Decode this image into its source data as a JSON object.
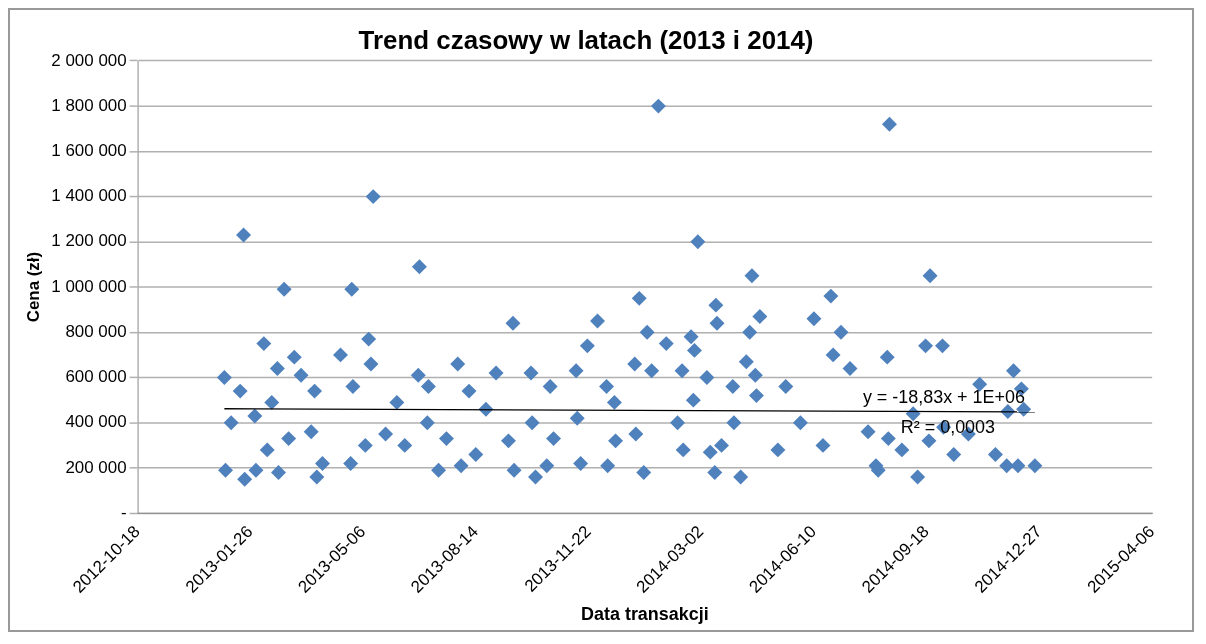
{
  "chart_data": {
    "type": "scatter",
    "title": "Trend czasowy w latach (2013 i 2014)",
    "xlabel": "Data transakcji",
    "ylabel": "Cena (zł)",
    "xlim": [
      "2012-10-18",
      "2015-04-06"
    ],
    "xticks": [
      "2012-10-18",
      "2013-01-26",
      "2013-05-06",
      "2013-08-14",
      "2013-11-22",
      "2014-03-02",
      "2014-06-10",
      "2014-09-18",
      "2014-12-27",
      "2015-04-06"
    ],
    "ylim": [
      0,
      2000000
    ],
    "yticks": [
      {
        "value": 0,
        "label": "-"
      },
      {
        "value": 200000,
        "label": "200 000"
      },
      {
        "value": 400000,
        "label": "400 000"
      },
      {
        "value": 600000,
        "label": "600 000"
      },
      {
        "value": 800000,
        "label": "800 000"
      },
      {
        "value": 1000000,
        "label": "1 000 000"
      },
      {
        "value": 1200000,
        "label": "1 200 000"
      },
      {
        "value": 1400000,
        "label": "1 400 000"
      },
      {
        "value": 1600000,
        "label": "1 600 000"
      },
      {
        "value": 1800000,
        "label": "1 800 000"
      },
      {
        "value": 2000000,
        "label": "2 000 000"
      }
    ],
    "grid": "y",
    "legend": false,
    "series": [
      {
        "type": "scatter",
        "marker": "diamond",
        "color": "#4f81bd",
        "x": [
          "2013-01-03",
          "2013-01-04",
          "2013-01-09",
          "2013-01-17",
          "2013-01-20",
          "2013-01-21",
          "2013-01-30",
          "2013-01-31",
          "2013-02-07",
          "2013-02-10",
          "2013-02-14",
          "2013-02-19",
          "2013-02-20",
          "2013-02-25",
          "2013-03-01",
          "2013-03-06",
          "2013-03-12",
          "2013-03-21",
          "2013-03-24",
          "2013-03-26",
          "2013-03-31",
          "2013-04-16",
          "2013-04-26",
          "2013-04-27",
          "2013-04-25",
          "2013-05-08",
          "2013-05-11",
          "2013-05-13",
          "2013-05-15",
          "2013-05-26",
          "2013-06-05",
          "2013-06-12",
          "2013-06-25",
          "2013-06-24",
          "2013-07-02",
          "2013-07-03",
          "2013-07-12",
          "2013-07-19",
          "2013-07-29",
          "2013-08-01",
          "2013-08-08",
          "2013-08-14",
          "2013-08-23",
          "2013-09-01",
          "2013-09-12",
          "2013-09-16",
          "2013-09-17",
          "2013-10-02",
          "2013-10-03",
          "2013-10-06",
          "2013-10-16",
          "2013-10-19",
          "2013-10-22",
          "2013-11-11",
          "2013-11-12",
          "2013-11-15",
          "2013-11-21",
          "2013-11-30",
          "2013-12-08",
          "2013-12-09",
          "2013-12-15",
          "2013-12-16",
          "2014-01-02",
          "2014-01-03",
          "2014-01-06",
          "2014-01-10",
          "2014-01-13",
          "2014-01-17",
          "2014-01-23",
          "2014-01-30",
          "2014-02-09",
          "2014-02-13",
          "2014-02-14",
          "2014-02-21",
          "2014-02-23",
          "2014-02-24",
          "2014-02-27",
          "2014-03-07",
          "2014-03-10",
          "2014-03-14",
          "2014-03-15",
          "2014-03-16",
          "2014-03-20",
          "2014-03-30",
          "2014-03-31",
          "2014-04-06",
          "2014-04-11",
          "2014-04-14",
          "2014-04-16",
          "2014-04-19",
          "2014-04-20",
          "2014-04-23",
          "2014-05-09",
          "2014-05-16",
          "2014-05-29",
          "2014-06-10",
          "2014-06-18",
          "2014-06-25",
          "2014-06-27",
          "2014-07-04",
          "2014-07-12",
          "2014-07-28",
          "2014-08-04",
          "2014-08-06",
          "2014-08-14",
          "2014-08-15",
          "2014-08-16",
          "2014-08-27",
          "2014-09-06",
          "2014-09-10",
          "2014-09-17",
          "2014-09-20",
          "2014-09-21",
          "2014-10-02",
          "2014-10-03",
          "2014-10-12",
          "2014-10-25",
          "2014-11-04",
          "2014-11-18",
          "2014-11-28",
          "2014-11-29",
          "2014-12-04",
          "2014-12-08",
          "2014-12-11",
          "2014-12-13",
          "2014-12-23"
        ],
        "values": [
          600000,
          190000,
          400000,
          540000,
          1230000,
          150000,
          430000,
          190000,
          750000,
          280000,
          490000,
          640000,
          180000,
          990000,
          330000,
          690000,
          610000,
          360000,
          540000,
          160000,
          220000,
          700000,
          990000,
          560000,
          220000,
          300000,
          770000,
          660000,
          1400000,
          350000,
          490000,
          300000,
          1090000,
          610000,
          400000,
          560000,
          190000,
          330000,
          660000,
          210000,
          540000,
          260000,
          460000,
          620000,
          320000,
          840000,
          190000,
          620000,
          400000,
          160000,
          210000,
          560000,
          330000,
          630000,
          420000,
          220000,
          740000,
          850000,
          560000,
          210000,
          490000,
          320000,
          660000,
          350000,
          950000,
          180000,
          800000,
          630000,
          1800000,
          750000,
          400000,
          630000,
          280000,
          780000,
          500000,
          720000,
          1200000,
          600000,
          270000,
          180000,
          920000,
          840000,
          300000,
          560000,
          400000,
          160000,
          670000,
          800000,
          1050000,
          610000,
          520000,
          870000,
          280000,
          560000,
          400000,
          860000,
          300000,
          960000,
          700000,
          800000,
          640000,
          360000,
          210000,
          190000,
          690000,
          330000,
          1720000,
          280000,
          440000,
          160000,
          740000,
          320000,
          1050000,
          740000,
          380000,
          260000,
          350000,
          570000,
          260000,
          210000,
          450000,
          630000,
          210000,
          550000,
          460000,
          210000
        ]
      },
      {
        "type": "line",
        "marker": "none",
        "color": "#000000",
        "x": [
          "2013-01-03",
          "2014-12-23"
        ],
        "values": [
          462000,
          448000
        ]
      }
    ],
    "annotations": [
      "y = -18,83x + 1E+06",
      "R² = 0,0003"
    ]
  }
}
